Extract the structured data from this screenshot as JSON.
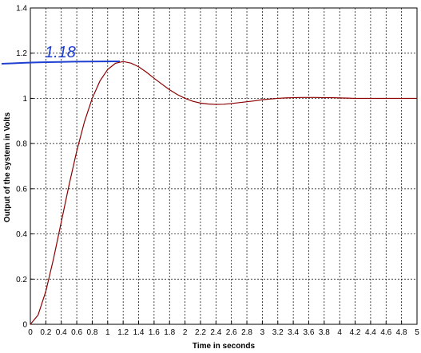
{
  "chart_data": {
    "type": "line",
    "xlabel": "Time in seconds",
    "ylabel": "Output of the system in Volts",
    "x": [
      0,
      0.1,
      0.2,
      0.3,
      0.4,
      0.5,
      0.6,
      0.7,
      0.8,
      0.9,
      1,
      1.1,
      1.2,
      1.3,
      1.4,
      1.5,
      1.6,
      1.7,
      1.8,
      1.9,
      2,
      2.1,
      2.2,
      2.3,
      2.4,
      2.5,
      2.6,
      2.7,
      2.8,
      2.9,
      3,
      3.1,
      3.2,
      3.3,
      3.4,
      3.5,
      3.6,
      3.7,
      3.8,
      3.9,
      4,
      4.1,
      4.2,
      4.3,
      4.4,
      4.5,
      4.6,
      4.7,
      4.8,
      4.9,
      5
    ],
    "series": [
      {
        "color": "#8b0000",
        "values": [
          0,
          0.041,
          0.146,
          0.291,
          0.453,
          0.616,
          0.767,
          0.897,
          1.0,
          1.077,
          1.128,
          1.155,
          1.163,
          1.156,
          1.14,
          1.116,
          1.089,
          1.063,
          1.038,
          1.017,
          1.0,
          0.987,
          0.979,
          0.975,
          0.973,
          0.974,
          0.977,
          0.981,
          0.985,
          0.989,
          0.994,
          0.997,
          1.0,
          1.002,
          1.003,
          1.004,
          1.004,
          1.004,
          1.003,
          1.003,
          1.002,
          1.001,
          1.0,
          1.0,
          1.0,
          1.0,
          1.0,
          1.0,
          1.0,
          1.0,
          1.0
        ]
      }
    ],
    "xlim": [
      0,
      5
    ],
    "xticks": [
      0,
      0.2,
      0.4,
      0.6,
      0.8,
      1,
      1.2,
      1.4,
      1.6,
      1.8,
      2,
      2.2,
      2.4,
      2.6,
      2.8,
      3,
      3.2,
      3.4,
      3.6,
      3.8,
      4,
      4.2,
      4.4,
      4.6,
      4.8,
      5
    ],
    "ylim": [
      0,
      1.4
    ],
    "yticks": [
      0,
      0.2,
      0.4,
      0.6,
      0.8,
      1,
      1.2,
      1.4
    ],
    "grid": true,
    "annotation": {
      "text": "1.18",
      "y": 1.16,
      "color": "#1f3fd0"
    }
  }
}
